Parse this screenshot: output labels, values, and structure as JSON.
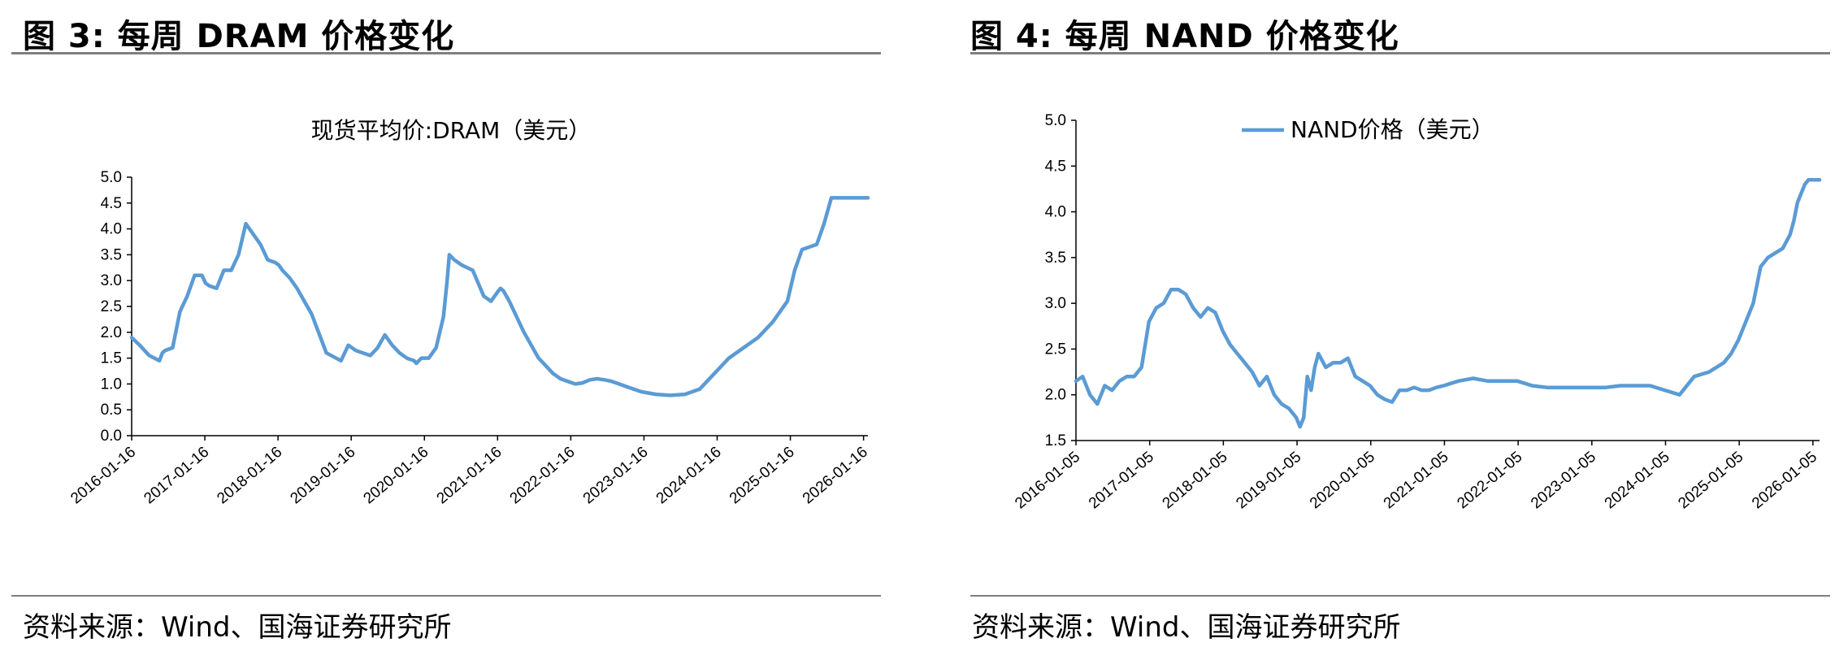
{
  "figures": [
    {
      "heading": "图 3:  每周 DRAM 价格变化",
      "source": "资料来源：Wind、国海证券研究所"
    },
    {
      "heading": "图 4:  每周 NAND 价格变化",
      "source": "资料来源：Wind、国海证券研究所"
    }
  ],
  "chart_data": [
    {
      "type": "line",
      "title": "现货平均价:DRAM（美元）",
      "xlabel": "",
      "ylabel": "",
      "ylim": [
        0,
        5
      ],
      "yticks": [
        "0.0",
        "0.5",
        "1.0",
        "1.5",
        "2.0",
        "2.5",
        "3.0",
        "3.5",
        "4.0",
        "4.5",
        "5.0"
      ],
      "xtick_labels": [
        "2016-01-16",
        "2017-01-16",
        "2018-01-16",
        "2019-01-16",
        "2020-01-16",
        "2021-01-16",
        "2022-01-16",
        "2023-01-16",
        "2024-01-16",
        "2025-01-16",
        "2026-01-16"
      ],
      "xlim": [
        2016.04,
        2026.1
      ],
      "line_color": "#5b9bd5",
      "grid": false,
      "legend": "none",
      "series": [
        {
          "x": [
            2016.04,
            2016.15,
            2016.28,
            2016.42,
            2016.46,
            2016.5,
            2016.6,
            2016.7,
            2016.8,
            2016.9,
            2017.0,
            2017.05,
            2017.1,
            2017.2,
            2017.3,
            2017.4,
            2017.5,
            2017.6,
            2017.7,
            2017.8,
            2017.9,
            2018.0,
            2018.05,
            2018.1,
            2018.2,
            2018.3,
            2018.4,
            2018.5,
            2018.7,
            2018.9,
            2019.0,
            2019.1,
            2019.2,
            2019.3,
            2019.4,
            2019.5,
            2019.6,
            2019.7,
            2019.8,
            2019.9,
            2019.93,
            2020.0,
            2020.1,
            2020.2,
            2020.3,
            2020.35,
            2020.38,
            2020.45,
            2020.55,
            2020.7,
            2020.85,
            2020.95,
            2021.0,
            2021.05,
            2021.08,
            2021.12,
            2021.2,
            2021.3,
            2021.4,
            2021.5,
            2021.6,
            2021.7,
            2021.8,
            2021.9,
            2022.0,
            2022.1,
            2022.2,
            2022.3,
            2022.4,
            2022.5,
            2022.6,
            2022.7,
            2022.8,
            2022.9,
            2023.0,
            2023.2,
            2023.4,
            2023.6,
            2023.8,
            2024.0,
            2024.2,
            2024.4,
            2024.6,
            2024.8,
            2025.0,
            2025.1,
            2025.2,
            2025.3,
            2025.4,
            2025.5,
            2025.6,
            2025.7,
            2025.8,
            2025.9,
            2025.95,
            2026.0,
            2026.04,
            2026.07,
            2026.1
          ],
          "values": [
            1.9,
            1.75,
            1.55,
            1.45,
            1.6,
            1.65,
            1.7,
            2.4,
            2.7,
            3.1,
            3.1,
            2.95,
            2.9,
            2.85,
            3.2,
            3.2,
            3.5,
            4.1,
            3.9,
            3.7,
            3.4,
            3.35,
            3.3,
            3.2,
            3.05,
            2.85,
            2.6,
            2.35,
            1.6,
            1.45,
            1.75,
            1.65,
            1.6,
            1.55,
            1.7,
            1.95,
            1.75,
            1.6,
            1.5,
            1.45,
            1.4,
            1.5,
            1.5,
            1.7,
            2.3,
            3.0,
            3.5,
            3.4,
            3.3,
            3.2,
            2.7,
            2.6,
            2.7,
            2.8,
            2.85,
            2.8,
            2.6,
            2.3,
            2.0,
            1.75,
            1.5,
            1.35,
            1.2,
            1.1,
            1.05,
            1.0,
            1.02,
            1.08,
            1.1,
            1.08,
            1.05,
            1.0,
            0.95,
            0.9,
            0.85,
            0.8,
            0.78,
            0.8,
            0.9,
            1.2,
            1.5,
            1.7,
            1.9,
            2.2,
            2.6,
            3.2,
            3.6,
            3.65,
            3.7,
            4.1,
            4.6,
            4.6,
            4.6,
            4.6,
            4.6,
            4.6,
            4.6,
            4.6,
            4.6
          ]
        }
      ]
    },
    {
      "type": "line",
      "title": "",
      "xlabel": "",
      "ylabel": "",
      "ylim": [
        1.5,
        5.0
      ],
      "yticks": [
        "1.5",
        "2.0",
        "2.5",
        "3.0",
        "3.5",
        "4.0",
        "4.5",
        "5.0"
      ],
      "xtick_labels": [
        "2016-01-05",
        "2017-01-05",
        "2018-01-05",
        "2019-01-05",
        "2020-01-05",
        "2021-01-05",
        "2022-01-05",
        "2023-01-05",
        "2024-01-05",
        "2025-01-05",
        "2026-01-05"
      ],
      "xlim": [
        2016.01,
        2026.1
      ],
      "line_color": "#5b9bd5",
      "grid": false,
      "legend": "top-center",
      "series": [
        {
          "name": "NAND价格（美元）",
          "x": [
            2016.01,
            2016.1,
            2016.2,
            2016.3,
            2016.4,
            2016.5,
            2016.6,
            2016.7,
            2016.8,
            2016.9,
            2017.0,
            2017.1,
            2017.2,
            2017.3,
            2017.4,
            2017.5,
            2017.6,
            2017.7,
            2017.8,
            2017.9,
            2018.0,
            2018.1,
            2018.2,
            2018.3,
            2018.4,
            2018.5,
            2018.6,
            2018.7,
            2018.8,
            2018.9,
            2019.0,
            2019.05,
            2019.1,
            2019.15,
            2019.2,
            2019.25,
            2019.3,
            2019.4,
            2019.5,
            2019.6,
            2019.7,
            2019.8,
            2019.9,
            2020.0,
            2020.1,
            2020.2,
            2020.3,
            2020.4,
            2020.5,
            2020.6,
            2020.7,
            2020.8,
            2020.9,
            2021.0,
            2021.2,
            2021.4,
            2021.6,
            2021.8,
            2022.0,
            2022.2,
            2022.4,
            2022.6,
            2022.8,
            2023.0,
            2023.2,
            2023.4,
            2023.6,
            2023.8,
            2024.0,
            2024.2,
            2024.4,
            2024.6,
            2024.8,
            2024.9,
            2025.0,
            2025.1,
            2025.2,
            2025.3,
            2025.4,
            2025.5,
            2025.6,
            2025.7,
            2025.75,
            2025.8,
            2025.85,
            2025.9,
            2025.95,
            2026.0,
            2026.05,
            2026.1
          ],
          "values": [
            2.15,
            2.2,
            2.0,
            1.9,
            2.1,
            2.05,
            2.15,
            2.2,
            2.2,
            2.3,
            2.8,
            2.95,
            3.0,
            3.15,
            3.15,
            3.1,
            2.95,
            2.85,
            2.95,
            2.9,
            2.7,
            2.55,
            2.45,
            2.35,
            2.25,
            2.1,
            2.2,
            2.0,
            1.9,
            1.85,
            1.75,
            1.65,
            1.75,
            2.2,
            2.05,
            2.3,
            2.45,
            2.3,
            2.35,
            2.35,
            2.4,
            2.2,
            2.15,
            2.1,
            2.0,
            1.95,
            1.92,
            2.05,
            2.05,
            2.08,
            2.05,
            2.05,
            2.08,
            2.1,
            2.15,
            2.18,
            2.15,
            2.15,
            2.15,
            2.1,
            2.08,
            2.08,
            2.08,
            2.08,
            2.08,
            2.1,
            2.1,
            2.1,
            2.05,
            2.0,
            2.2,
            2.25,
            2.35,
            2.45,
            2.6,
            2.8,
            3.0,
            3.4,
            3.5,
            3.55,
            3.6,
            3.75,
            3.9,
            4.1,
            4.2,
            4.3,
            4.35,
            4.35,
            4.35,
            4.35
          ]
        }
      ]
    }
  ]
}
